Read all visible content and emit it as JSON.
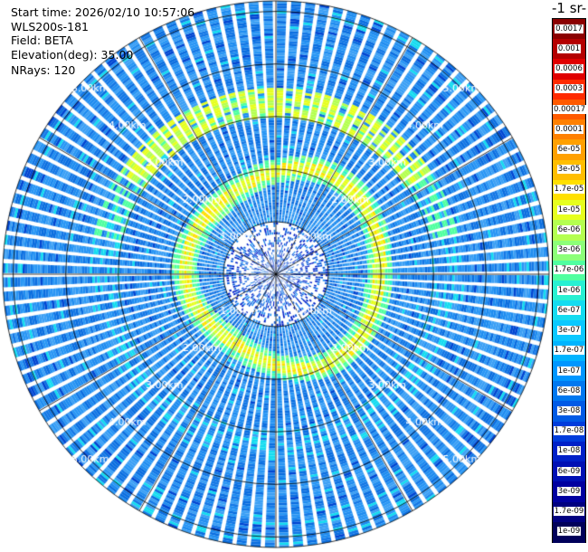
{
  "info": {
    "start_time": "Start time: 2026/02/10 10:57:06",
    "instrument": "WLS200s-181",
    "field": "Field: BETA",
    "elevation": "Elevation(deg): 35.00",
    "nrays": "NRays: 120"
  },
  "colorbar": {
    "units_label": "-1 sr-",
    "labels": [
      "0.0017",
      "0.001",
      "0.0006",
      "0.0003",
      "0.00017",
      "0.0001",
      "6e-05",
      "3e-05",
      "1.7e-05",
      "1e-05",
      "6e-06",
      "3e-06",
      "1.7e-06",
      "1e-06",
      "6e-07",
      "3e-07",
      "1.7e-07",
      "1e-07",
      "6e-08",
      "3e-08",
      "1.7e-08",
      "1e-08",
      "6e-09",
      "3e-09",
      "1.7e-09",
      "1e-09"
    ],
    "colors": [
      "#8b0000",
      "#b40000",
      "#e00000",
      "#ff2a00",
      "#ff5a00",
      "#ff8000",
      "#ffa000",
      "#ffbe00",
      "#ffe000",
      "#e6ff1e",
      "#b4ff50",
      "#8cff78",
      "#50ffa0",
      "#28f0d2",
      "#14dcf0",
      "#0ac8ff",
      "#00b4ff",
      "#0096ff",
      "#0078f0",
      "#005ae6",
      "#003cdc",
      "#0020c8",
      "#0010b4",
      "#0000a0",
      "#000080",
      "#00005a"
    ]
  },
  "chart_data": {
    "type": "heatmap",
    "projection": "polar-ppi",
    "field": "BETA",
    "elevation_deg": 35.0,
    "n_rays": 120,
    "max_range_km": 5.2,
    "range_rings_km": [
      1,
      2,
      3,
      4,
      5
    ],
    "ring_labels": [
      "1.00km",
      "2.00km",
      "3.00km",
      "4.00km",
      "5.00km"
    ],
    "scale": "log",
    "value_range": [
      1e-09,
      0.0017
    ],
    "background_level": "6e-08",
    "features": [
      {
        "range_km": [
          1.55,
          2.2
        ],
        "level": "1.7e-05",
        "note": "bright ring"
      },
      {
        "range_km": [
          3.1,
          3.5
        ],
        "level": "3e-06",
        "sector": "north"
      },
      {
        "range_km": [
          0.0,
          1.0
        ],
        "level": "1e-08"
      }
    ]
  }
}
